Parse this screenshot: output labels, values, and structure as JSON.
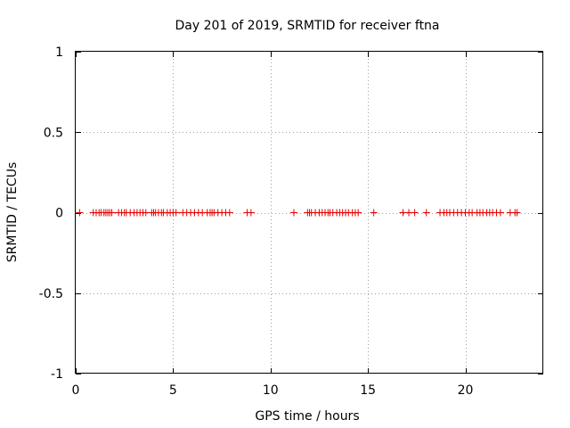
{
  "chart_data": {
    "type": "scatter",
    "title": "Day 201 of 2019, SRMTID for receiver ftna",
    "xlabel": "GPS time / hours",
    "ylabel": "SRMTID / TECUs",
    "xlim": [
      0,
      24
    ],
    "ylim": [
      -1,
      1
    ],
    "x_ticks": [
      0,
      5,
      10,
      15,
      20
    ],
    "x_tick_labels": [
      "0",
      "5",
      "10",
      "15",
      "20"
    ],
    "y_ticks": [
      -1,
      -0.5,
      0,
      0.5,
      1
    ],
    "y_tick_labels": [
      "-1",
      "-0.5",
      "0",
      "0.5",
      "1"
    ],
    "grid": true,
    "marker": "+",
    "color": "#e00000",
    "series": [
      {
        "name": "SRMTID",
        "x": [
          0.2,
          0.9,
          1.05,
          1.2,
          1.3,
          1.45,
          1.55,
          1.65,
          1.75,
          1.85,
          2.2,
          2.35,
          2.5,
          2.6,
          2.8,
          3.0,
          3.15,
          3.3,
          3.45,
          3.6,
          3.9,
          4.0,
          4.1,
          4.25,
          4.4,
          4.5,
          4.7,
          4.85,
          5.0,
          5.15,
          5.5,
          5.7,
          5.9,
          6.1,
          6.3,
          6.5,
          6.75,
          6.9,
          7.0,
          7.1,
          7.3,
          7.5,
          7.7,
          7.9,
          8.8,
          9.0,
          11.2,
          11.9,
          12.0,
          12.1,
          12.3,
          12.5,
          12.65,
          12.8,
          12.95,
          13.05,
          13.2,
          13.4,
          13.55,
          13.7,
          13.85,
          14.0,
          14.2,
          14.35,
          14.5,
          15.3,
          16.8,
          17.1,
          17.4,
          18.0,
          18.7,
          18.9,
          19.05,
          19.2,
          19.4,
          19.6,
          19.8,
          20.0,
          20.2,
          20.35,
          20.6,
          20.75,
          20.9,
          21.1,
          21.25,
          21.4,
          21.6,
          21.8,
          22.3,
          22.55,
          22.65
        ],
        "y": [
          0,
          0,
          0,
          0,
          0,
          0,
          0,
          0,
          0,
          0,
          0,
          0,
          0,
          0,
          0,
          0,
          0,
          0,
          0,
          0,
          0,
          0,
          0,
          0,
          0,
          0,
          0,
          0,
          0,
          0,
          0,
          0,
          0,
          0,
          0,
          0,
          0,
          0,
          0,
          0,
          0,
          0,
          0,
          0,
          0,
          0,
          0,
          0,
          0,
          0,
          0,
          0,
          0,
          0,
          0,
          0,
          0,
          0,
          0,
          0,
          0,
          0,
          0,
          0,
          0,
          0,
          0,
          0,
          0,
          0,
          0,
          0,
          0,
          0,
          0,
          0,
          0,
          0,
          0,
          0,
          0,
          0,
          0,
          0,
          0,
          0,
          0,
          0,
          0,
          0,
          0
        ]
      }
    ]
  }
}
